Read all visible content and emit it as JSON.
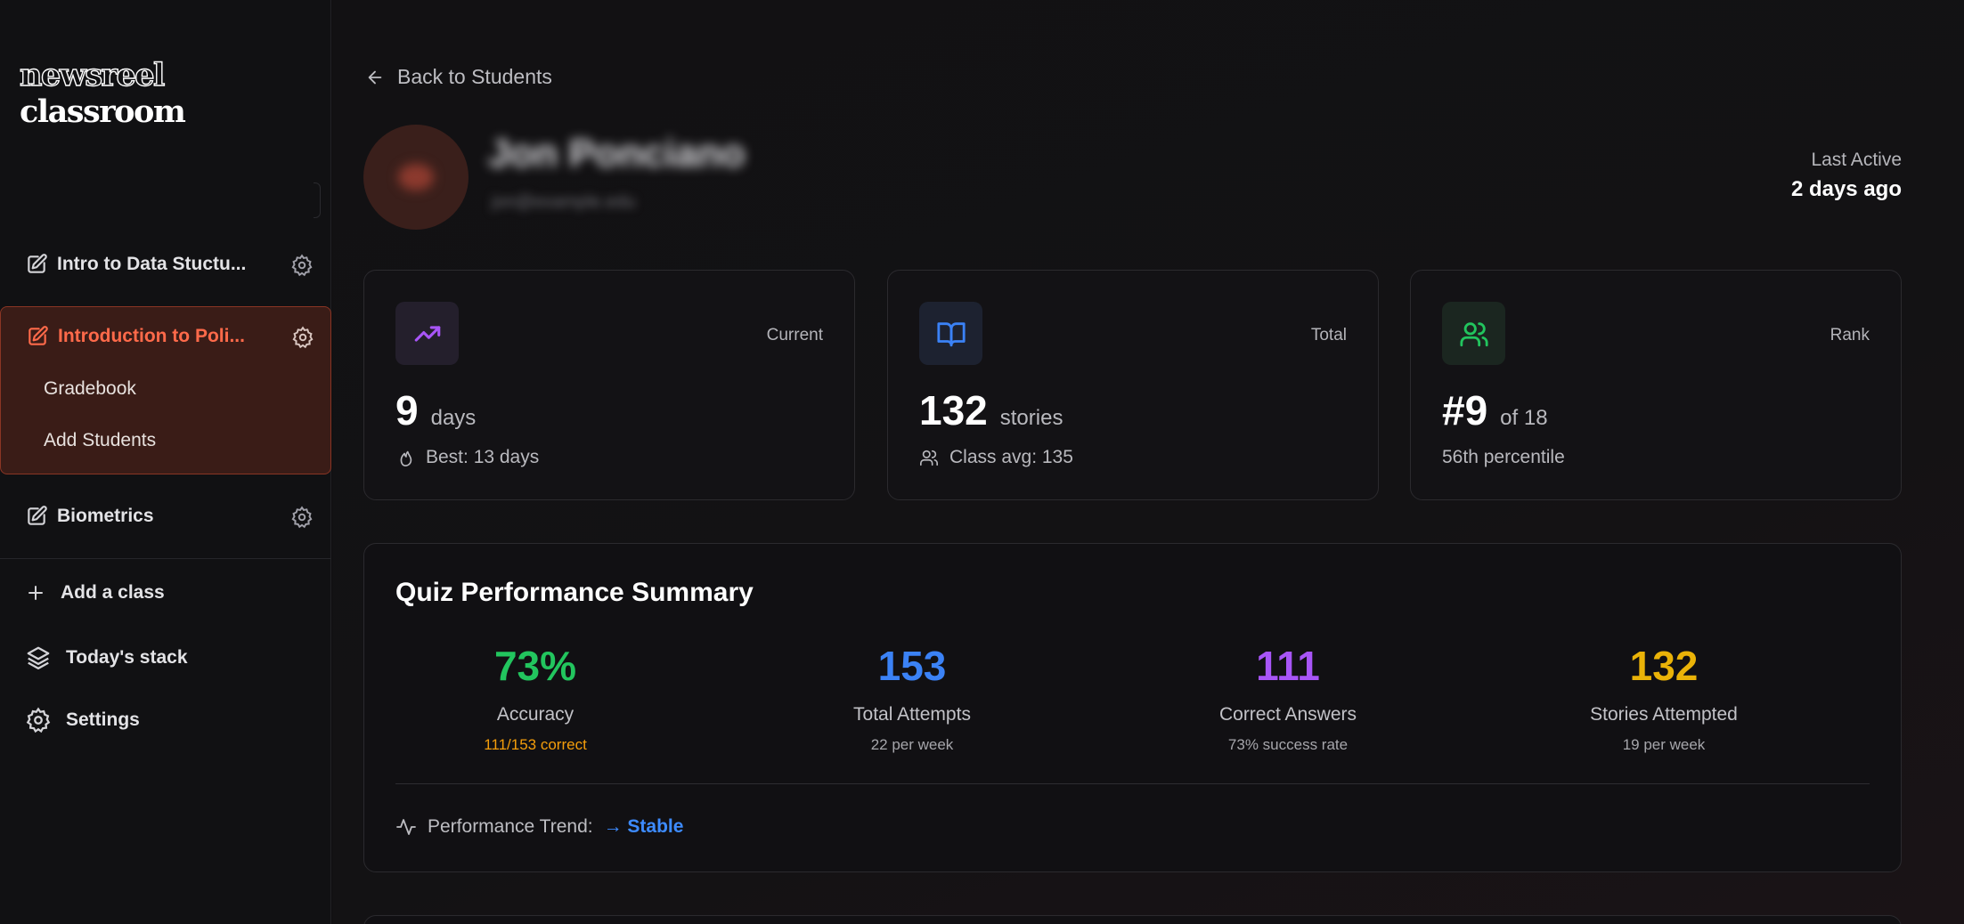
{
  "app": {
    "logo_part1": "newsreel",
    "logo_part2": "classroom"
  },
  "sidebar": {
    "classes": [
      {
        "label": "Intro to Data Stuctu...",
        "icon": "edit-icon"
      },
      {
        "label": "Introduction to Poli...",
        "icon": "edit-icon",
        "active": true,
        "sub_items": [
          "Gradebook",
          "Add Students"
        ]
      },
      {
        "label": "Biometrics",
        "icon": "edit-icon"
      }
    ],
    "actions": [
      {
        "label": "Add a class",
        "icon": "plus-icon"
      },
      {
        "label": "Today's stack",
        "icon": "layers-icon"
      },
      {
        "label": "Settings",
        "icon": "gear-icon"
      }
    ]
  },
  "header": {
    "back_label": "Back to Students",
    "student_name": "Jon Ponciano",
    "student_email": "jon@example.edu",
    "last_active_label": "Last Active",
    "last_active_value": "2 days ago"
  },
  "cards": [
    {
      "corner": "Current",
      "value": "9",
      "unit": "days",
      "sub": "Best: 13 days",
      "icon": "trending-up-icon",
      "accent": "#a855f7"
    },
    {
      "corner": "Total",
      "value": "132",
      "unit": "stories",
      "sub": "Class avg: 135",
      "icon": "book-open-icon",
      "accent": "#3b82f6"
    },
    {
      "corner": "Rank",
      "value": "#9",
      "unit": "of 18",
      "sub": "56th percentile",
      "icon": "users-icon",
      "accent": "#22c55e"
    }
  ],
  "quiz": {
    "title": "Quiz Performance Summary",
    "metrics": [
      {
        "value": "73%",
        "label": "Accuracy",
        "note": "111/153 correct",
        "color": "#22c55e",
        "note_color": "#f59e0b"
      },
      {
        "value": "153",
        "label": "Total Attempts",
        "note": "22 per week",
        "color": "#3b82f6"
      },
      {
        "value": "111",
        "label": "Correct Answers",
        "note": "73% success rate",
        "color": "#a855f7"
      },
      {
        "value": "132",
        "label": "Stories Attempted",
        "note": "19 per week",
        "color": "#eab308"
      }
    ],
    "trend_label": "Performance Trend:",
    "trend_value": "→ Stable"
  }
}
